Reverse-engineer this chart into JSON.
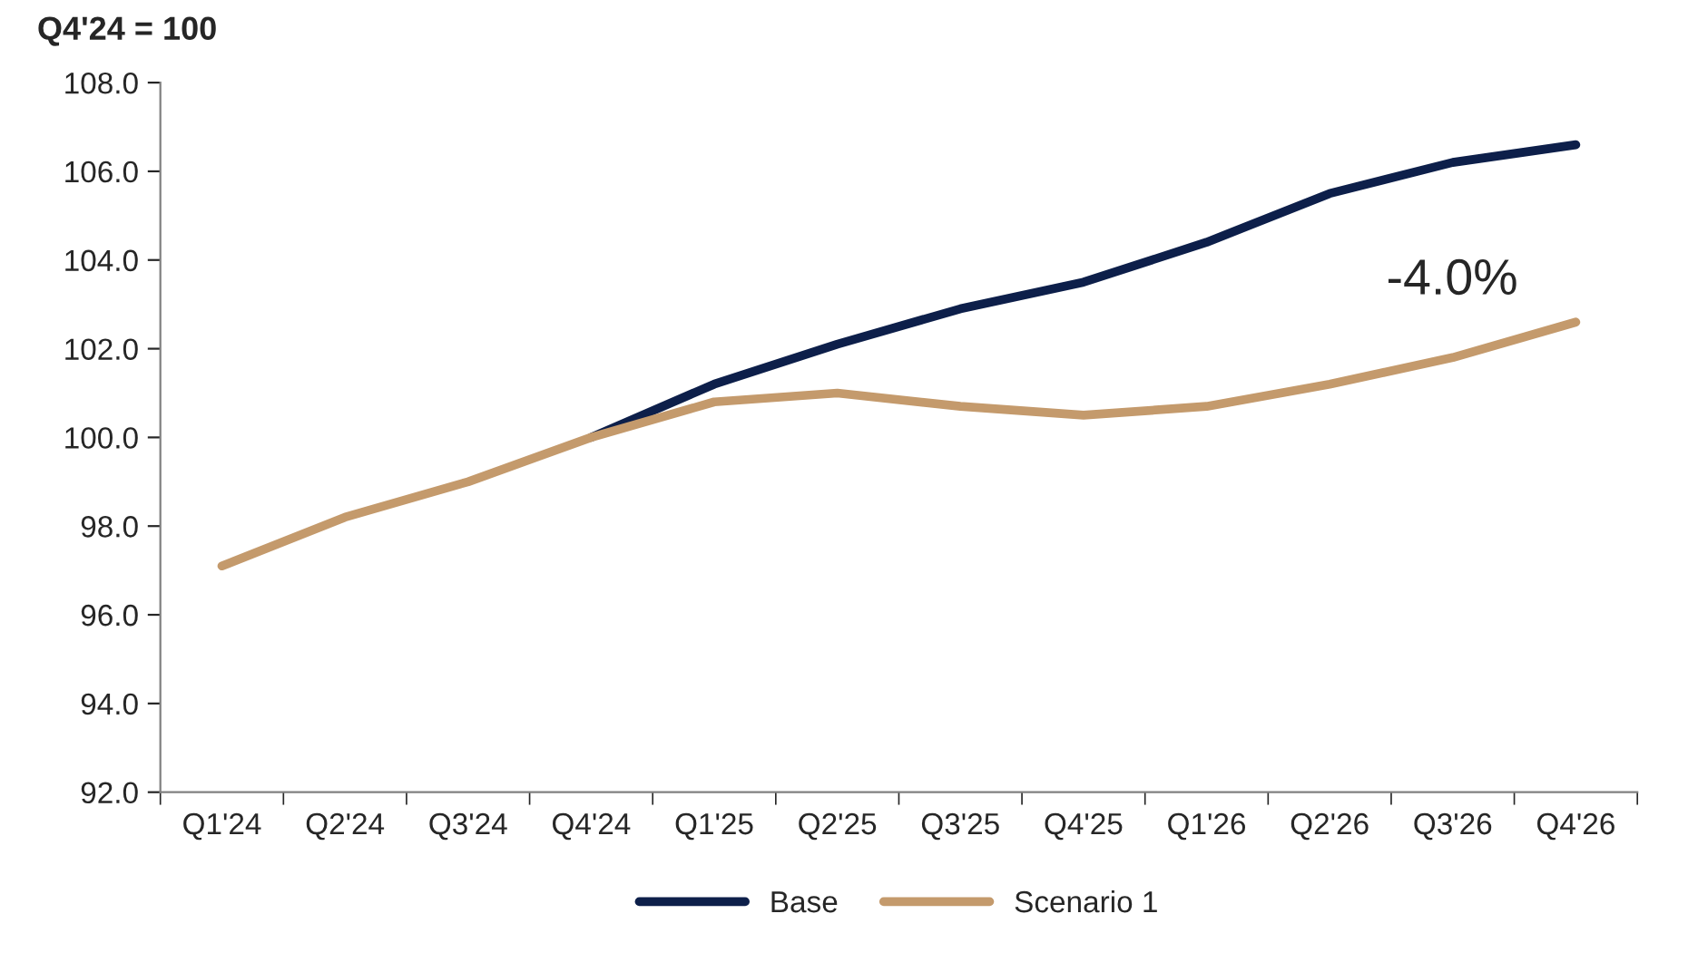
{
  "chart_data": {
    "type": "line",
    "ylabel": "Q4'24 = 100",
    "categories": [
      "Q1'24",
      "Q2'24",
      "Q3'24",
      "Q4'24",
      "Q1'25",
      "Q2'25",
      "Q3'25",
      "Q4'25",
      "Q1'26",
      "Q2'26",
      "Q3'26",
      "Q4'26"
    ],
    "series": [
      {
        "name": "Base",
        "color": "#0d1f4a",
        "values": [
          null,
          null,
          null,
          100.0,
          101.2,
          102.1,
          102.9,
          103.5,
          104.4,
          105.5,
          106.2,
          106.6
        ]
      },
      {
        "name": "Scenario 1",
        "color": "#c49a6c",
        "values": [
          97.1,
          98.2,
          99.0,
          100.0,
          100.8,
          101.0,
          100.7,
          100.5,
          100.7,
          101.2,
          101.8,
          102.6
        ]
      }
    ],
    "ylim": [
      92,
      108
    ],
    "yticks": [
      {
        "value": 92,
        "label": "92.0"
      },
      {
        "value": 94,
        "label": "94.0"
      },
      {
        "value": 96,
        "label": "96.0"
      },
      {
        "value": 98,
        "label": "98.0"
      },
      {
        "value": 100,
        "label": "100.0"
      },
      {
        "value": 102,
        "label": "102.0"
      },
      {
        "value": 104,
        "label": "104.0"
      },
      {
        "value": 106,
        "label": "106.0"
      },
      {
        "value": 108,
        "label": "108.0"
      }
    ],
    "annotations": [
      "-4.0%"
    ],
    "legend": "bottom",
    "grid": false,
    "marker": "none",
    "line_style": "solid"
  }
}
